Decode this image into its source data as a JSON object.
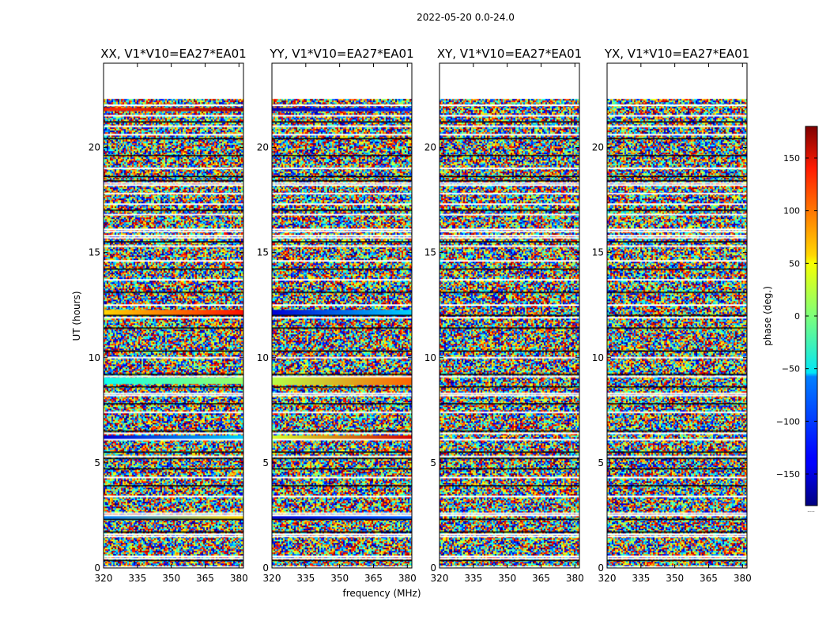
{
  "chart_data": {
    "type": "heatmap",
    "suptitle": "2022-05-20 0.0-24.0",
    "xlabel": "frequency (MHz)",
    "ylabel": "UT (hours)",
    "xlim": [
      320,
      382
    ],
    "ylim": [
      0,
      24
    ],
    "xticks": [
      320,
      335,
      350,
      365,
      380
    ],
    "yticks": [
      0,
      5,
      10,
      15,
      20
    ],
    "data_extent_hours": [
      0,
      22.3
    ],
    "panels": [
      {
        "title": "XX, V1*V10=EA27*EA01",
        "features": [
          {
            "ut": 12.15,
            "band": 0.25,
            "phase_start": 60,
            "phase_end": 130
          },
          {
            "ut": 6.2,
            "band": 0.2,
            "phase_start": -150,
            "phase_end": -60
          },
          {
            "ut": 8.9,
            "band": 0.3,
            "phase_start": -40,
            "phase_end": 10
          },
          {
            "ut": 2.4,
            "band": 0.15,
            "phase_start": -90,
            "phase_end": 60
          },
          {
            "ut": 21.8,
            "band": 0.15,
            "phase_start": 120,
            "phase_end": 170
          }
        ]
      },
      {
        "title": "YY, V1*V10=EA27*EA01",
        "features": [
          {
            "ut": 12.15,
            "band": 0.25,
            "phase_start": -150,
            "phase_end": -60
          },
          {
            "ut": 6.2,
            "band": 0.2,
            "phase_start": 30,
            "phase_end": 150
          },
          {
            "ut": 8.9,
            "band": 0.4,
            "phase_start": 20,
            "phase_end": 100
          },
          {
            "ut": 2.4,
            "band": 0.15,
            "phase_start": -150,
            "phase_end": -100
          },
          {
            "ut": 21.8,
            "band": 0.15,
            "phase_start": -160,
            "phase_end": -120
          }
        ]
      },
      {
        "title": "XY, V1*V10=EA27*EA01",
        "features": []
      },
      {
        "title": "YX, V1*V10=EA27*EA01",
        "features": []
      }
    ],
    "flagged_hours": [
      0.05,
      0.45,
      0.55,
      1.5,
      1.6,
      2.5,
      2.6,
      3.4,
      4.3,
      5.3,
      6.1,
      6.4,
      7.4,
      8.2,
      8.3,
      9.1,
      10.0,
      11.9,
      12.5,
      13.7,
      14.6,
      15.3,
      15.7,
      15.8,
      16.0,
      16.1,
      16.8,
      17.3,
      17.8,
      18.2,
      18.3,
      19.0,
      20.6,
      21.0,
      21.5,
      22.0
    ],
    "black_hours": [
      0.35,
      1.7,
      2.3,
      3.9,
      4.7,
      5.2,
      5.5,
      6.5,
      7.8,
      8.6,
      9.2,
      10.3,
      11.4,
      12.0,
      13.1,
      14.2,
      15.5,
      17.0,
      18.4,
      18.6,
      19.6,
      20.4,
      21.2
    ],
    "colorbar": {
      "label": "phase (deg.)",
      "range": [
        -180,
        180
      ],
      "ticks": [
        -150,
        -100,
        -50,
        0,
        50,
        100,
        150
      ],
      "tick_labels": [
        "−150",
        "−100",
        "−50",
        "0",
        "50",
        "100",
        "150"
      ],
      "colormap": "jet",
      "footnote": "....."
    }
  }
}
